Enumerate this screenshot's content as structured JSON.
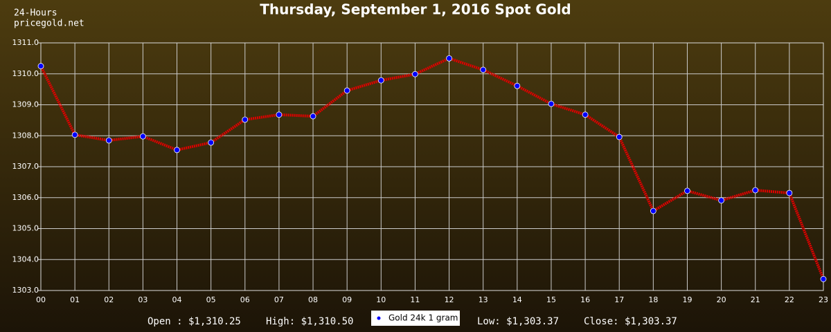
{
  "chart_data": {
    "type": "line",
    "title": "Thursday, September 1, 2016 Spot Gold",
    "corner_text": [
      "24-Hours",
      "pricegold.net"
    ],
    "categories": [
      "00",
      "01",
      "02",
      "03",
      "04",
      "05",
      "06",
      "07",
      "08",
      "09",
      "10",
      "11",
      "12",
      "13",
      "14",
      "15",
      "16",
      "17",
      "18",
      "19",
      "20",
      "21",
      "22",
      "23"
    ],
    "series": [
      {
        "name": "Gold 24k 1 gram",
        "color": "#e00000",
        "marker_color": "#0000ff",
        "values": [
          1310.25,
          1308.03,
          1307.85,
          1307.98,
          1307.54,
          1307.78,
          1308.52,
          1308.68,
          1308.63,
          1309.46,
          1309.79,
          1309.99,
          1310.5,
          1310.13,
          1309.61,
          1309.03,
          1308.68,
          1307.96,
          1305.57,
          1306.22,
          1305.91,
          1306.24,
          1306.15,
          1303.37
        ]
      }
    ],
    "ylim": [
      1303.0,
      1311.0
    ],
    "yticks": [
      {
        "value": 1303,
        "label": "1303.0"
      },
      {
        "value": 1304,
        "label": "1304.0"
      },
      {
        "value": 1305,
        "label": "1305.0"
      },
      {
        "value": 1306,
        "label": "1306.0"
      },
      {
        "value": 1307,
        "label": "1307.0"
      },
      {
        "value": 1308,
        "label": "1308.0"
      },
      {
        "value": 1309,
        "label": "1309.0"
      },
      {
        "value": 1310,
        "label": "1310.0"
      },
      {
        "value": 1311,
        "label": "1311.0"
      }
    ],
    "grid": true,
    "stats_left": [
      "Open : $1,310.25",
      "High: $1,310.50"
    ],
    "stats_right": [
      "Low: $1,303.37",
      "Close: $1,303.37"
    ]
  }
}
